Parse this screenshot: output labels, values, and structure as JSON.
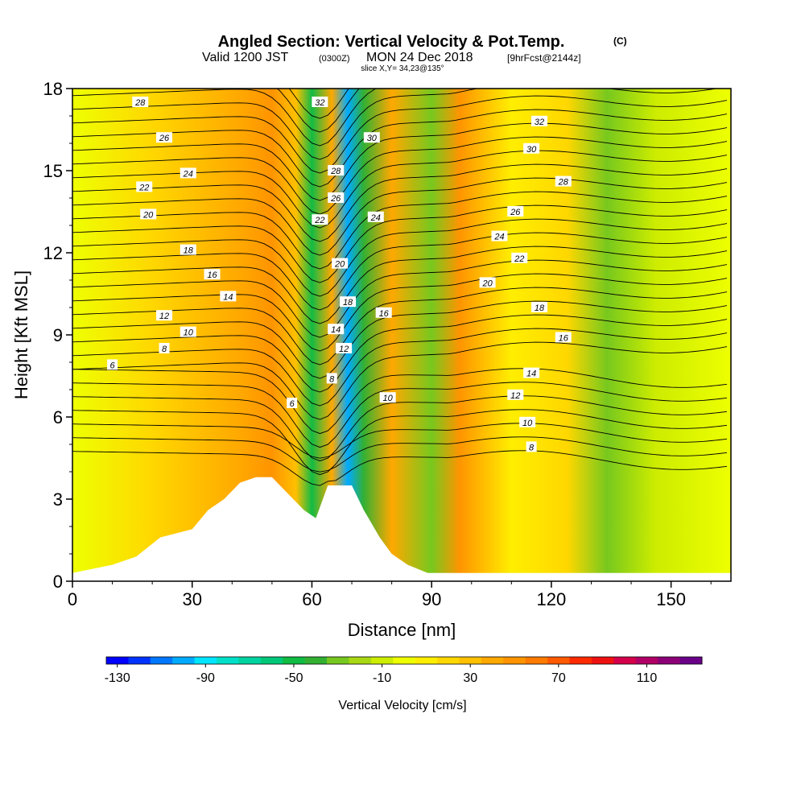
{
  "header": {
    "title_main": "Angled Section: Vertical Velocity & Pot.Temp.",
    "title_tag": "(C)",
    "valid_left": "Valid 1200 JST",
    "valid_small": "(0300Z)",
    "valid_right": "MON 24 Dec 2018",
    "fcst": "[9hrFcst@2144z]",
    "slice": "slice X,Y= 34,23@135°"
  },
  "colors": {
    "background": "#ffbf00",
    "terrain": "#ffffff",
    "contour": "#000000",
    "colorbar": [
      "#0000ff",
      "#0033ff",
      "#0077ff",
      "#00aaff",
      "#00e5ff",
      "#00e0c8",
      "#00d3a0",
      "#00c878",
      "#11bb44",
      "#33b032",
      "#77c81e",
      "#a8d814",
      "#ccec00",
      "#eeff00",
      "#ffee00",
      "#ffd700",
      "#ffc000",
      "#ffa800",
      "#ff9400",
      "#ff7a00",
      "#ff5a00",
      "#ff2a00",
      "#ee1111",
      "#d4004a",
      "#b00066",
      "#8c0077",
      "#6a0088"
    ]
  },
  "chart_data": {
    "type": "heatmap",
    "title": "Angled Section: Vertical Velocity & Pot.Temp.",
    "xlabel": "Distance [nm]",
    "ylabel": "Height [Kft MSL]",
    "xlim": [
      0,
      165
    ],
    "ylim": [
      0,
      18
    ],
    "xticks": [
      0,
      30,
      60,
      90,
      120,
      150
    ],
    "yticks": [
      0,
      3,
      6,
      9,
      12,
      15,
      18
    ],
    "colorbar": {
      "label": "Vertical Velocity [cm/s]",
      "min": -135,
      "max": 135,
      "step": 10,
      "tick_labels": [
        -130,
        -90,
        -50,
        -10,
        30,
        70,
        110
      ]
    },
    "vertical_velocity_bands": [
      {
        "x": 0,
        "w": -5
      },
      {
        "x": 20,
        "w": 20
      },
      {
        "x": 42,
        "w": 40
      },
      {
        "x": 50,
        "w": 50
      },
      {
        "x": 56,
        "w": 30
      },
      {
        "x": 60,
        "w": -50
      },
      {
        "x": 65,
        "w": 40
      },
      {
        "x": 69,
        "w": -100
      },
      {
        "x": 73,
        "w": -40
      },
      {
        "x": 80,
        "w": 40
      },
      {
        "x": 90,
        "w": -30
      },
      {
        "x": 97,
        "w": 50
      },
      {
        "x": 110,
        "w": 10
      },
      {
        "x": 124,
        "w": 15
      },
      {
        "x": 134,
        "w": -35
      },
      {
        "x": 146,
        "w": -10
      },
      {
        "x": 165,
        "w": 0
      }
    ],
    "terrain": [
      {
        "x": 0,
        "h": 0.3
      },
      {
        "x": 10,
        "h": 0.6
      },
      {
        "x": 16,
        "h": 0.9
      },
      {
        "x": 22,
        "h": 1.6
      },
      {
        "x": 30,
        "h": 1.9
      },
      {
        "x": 34,
        "h": 2.6
      },
      {
        "x": 38,
        "h": 3.0
      },
      {
        "x": 42,
        "h": 3.6
      },
      {
        "x": 46,
        "h": 3.8
      },
      {
        "x": 50,
        "h": 3.8
      },
      {
        "x": 54,
        "h": 3.2
      },
      {
        "x": 58,
        "h": 2.6
      },
      {
        "x": 61,
        "h": 2.3
      },
      {
        "x": 64,
        "h": 3.5
      },
      {
        "x": 70,
        "h": 3.5
      },
      {
        "x": 73,
        "h": 2.6
      },
      {
        "x": 77,
        "h": 1.6
      },
      {
        "x": 80,
        "h": 1.0
      },
      {
        "x": 84,
        "h": 0.6
      },
      {
        "x": 89,
        "h": 0.3
      },
      {
        "x": 165,
        "h": 0.3
      }
    ],
    "potential_temperature_labels": [
      {
        "x": 17,
        "h": 17.5,
        "v": "28"
      },
      {
        "x": 23,
        "h": 16.2,
        "v": "26"
      },
      {
        "x": 29,
        "h": 14.9,
        "v": "24"
      },
      {
        "x": 18,
        "h": 14.4,
        "v": "22"
      },
      {
        "x": 19,
        "h": 13.4,
        "v": "20"
      },
      {
        "x": 29,
        "h": 12.1,
        "v": "18"
      },
      {
        "x": 35,
        "h": 11.2,
        "v": "16"
      },
      {
        "x": 39,
        "h": 10.4,
        "v": "14"
      },
      {
        "x": 23,
        "h": 9.7,
        "v": "12"
      },
      {
        "x": 29,
        "h": 9.1,
        "v": "10"
      },
      {
        "x": 23,
        "h": 8.5,
        "v": "8"
      },
      {
        "x": 10,
        "h": 7.9,
        "v": "6"
      },
      {
        "x": 62,
        "h": 17.5,
        "v": "32"
      },
      {
        "x": 75,
        "h": 16.2,
        "v": "30"
      },
      {
        "x": 66,
        "h": 15.0,
        "v": "28"
      },
      {
        "x": 66,
        "h": 14.0,
        "v": "26"
      },
      {
        "x": 62,
        "h": 13.2,
        "v": "22"
      },
      {
        "x": 76,
        "h": 13.3,
        "v": "24"
      },
      {
        "x": 67,
        "h": 11.6,
        "v": "20"
      },
      {
        "x": 69,
        "h": 10.2,
        "v": "18"
      },
      {
        "x": 66,
        "h": 9.2,
        "v": "14"
      },
      {
        "x": 68,
        "h": 8.5,
        "v": "12"
      },
      {
        "x": 78,
        "h": 9.8,
        "v": "16"
      },
      {
        "x": 65,
        "h": 7.4,
        "v": "8"
      },
      {
        "x": 79,
        "h": 6.7,
        "v": "10"
      },
      {
        "x": 55,
        "h": 6.5,
        "v": "6"
      },
      {
        "x": 117,
        "h": 16.8,
        "v": "32"
      },
      {
        "x": 115,
        "h": 15.8,
        "v": "30"
      },
      {
        "x": 123,
        "h": 14.6,
        "v": "28"
      },
      {
        "x": 111,
        "h": 13.5,
        "v": "26"
      },
      {
        "x": 107,
        "h": 12.6,
        "v": "24"
      },
      {
        "x": 112,
        "h": 11.8,
        "v": "22"
      },
      {
        "x": 104,
        "h": 10.9,
        "v": "20"
      },
      {
        "x": 117,
        "h": 10.0,
        "v": "18"
      },
      {
        "x": 123,
        "h": 8.9,
        "v": "16"
      },
      {
        "x": 115,
        "h": 7.6,
        "v": "14"
      },
      {
        "x": 111,
        "h": 6.8,
        "v": "12"
      },
      {
        "x": 114,
        "h": 5.8,
        "v": "10"
      },
      {
        "x": 115,
        "h": 4.9,
        "v": "8"
      }
    ]
  }
}
